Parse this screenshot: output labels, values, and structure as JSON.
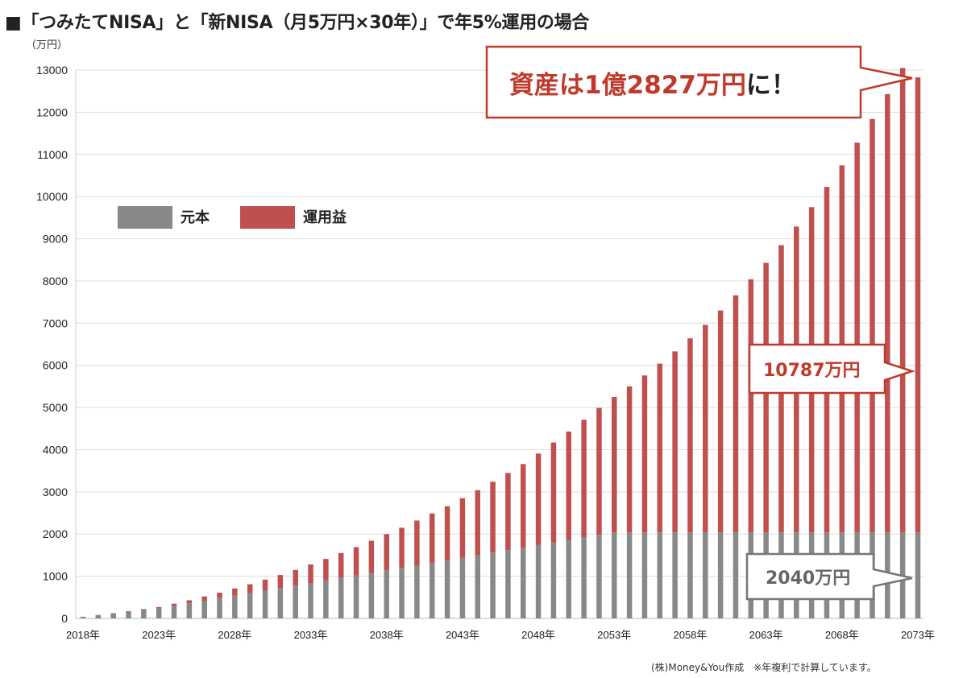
{
  "title": "■「つみたてNISA」と「新NISA（月5万円×30年）」で年5%運用の場合",
  "footer": "(株)Money&You作成　※年複利で計算しています。",
  "colors": {
    "principal": "#888888",
    "gain": "#c0504d",
    "callout_red": "#c0392b",
    "callout_gray": "#777777"
  },
  "chart_data": {
    "type": "bar",
    "stacked": true,
    "yunit": "（万円）",
    "ylim": [
      0,
      13000
    ],
    "yticks": [
      0,
      1000,
      2000,
      3000,
      4000,
      5000,
      6000,
      7000,
      8000,
      9000,
      10000,
      11000,
      12000,
      13000
    ],
    "xtick_labels": [
      "2018年",
      "2023年",
      "2028年",
      "2033年",
      "2038年",
      "2043年",
      "2048年",
      "2053年",
      "2058年",
      "2063年",
      "2068年",
      "2073年"
    ],
    "grid": true,
    "legend_position": "upper-left",
    "years": [
      2018,
      2019,
      2020,
      2021,
      2022,
      2023,
      2024,
      2025,
      2026,
      2027,
      2028,
      2029,
      2030,
      2031,
      2032,
      2033,
      2034,
      2035,
      2036,
      2037,
      2038,
      2039,
      2040,
      2041,
      2042,
      2043,
      2044,
      2045,
      2046,
      2047,
      2048,
      2049,
      2050,
      2051,
      2052,
      2053,
      2054,
      2055,
      2056,
      2057,
      2058,
      2059,
      2060,
      2061,
      2062,
      2063,
      2064,
      2065,
      2066,
      2067,
      2068,
      2069,
      2070,
      2071,
      2072,
      2073
    ],
    "series": [
      {
        "name": "元本",
        "values": [
          40,
          80,
          120,
          160,
          200,
          240,
          300,
          360,
          420,
          480,
          540,
          600,
          660,
          720,
          780,
          840,
          900,
          960,
          1020,
          1080,
          1140,
          1200,
          1260,
          1320,
          1380,
          1440,
          1500,
          1560,
          1620,
          1680,
          1740,
          1800,
          1860,
          1920,
          1980,
          2040,
          2040,
          2040,
          2040,
          2040,
          2040,
          2040,
          2040,
          2040,
          2040,
          2040,
          2040,
          2040,
          2040,
          2040,
          2040,
          2040,
          2040,
          2040,
          2040,
          2040
        ]
      },
      {
        "name": "運用益",
        "values": [
          0,
          2,
          6,
          12,
          20,
          30,
          50,
          70,
          100,
          130,
          170,
          210,
          260,
          310,
          370,
          440,
          510,
          590,
          670,
          760,
          860,
          950,
          1060,
          1170,
          1280,
          1410,
          1540,
          1680,
          1830,
          1980,
          2170,
          2370,
          2570,
          2790,
          3010,
          3210,
          3460,
          3720,
          4000,
          4290,
          4600,
          4920,
          5260,
          5620,
          6000,
          6390,
          6810,
          7250,
          7710,
          8190,
          8700,
          9240,
          9800,
          10390,
          11010,
          10787
        ]
      }
    ],
    "annotations": [
      {
        "text": "資産は1億2827万円に！",
        "target_year": 2073,
        "target_value": 12827
      },
      {
        "text": "10787万円",
        "target_year": 2073,
        "target_value": 6000
      },
      {
        "text": "2040万円",
        "target_year": 2073,
        "target_value": 1000
      }
    ],
    "total_2073": 12827
  }
}
